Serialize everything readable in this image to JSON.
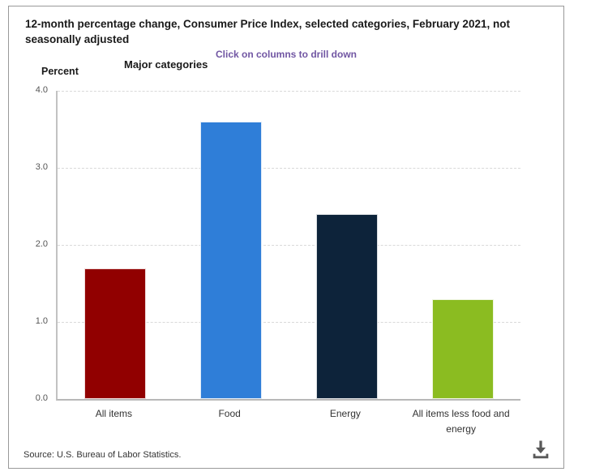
{
  "panel": {
    "title": "12-month percentage change, Consumer Price Index, selected categories, February 2021, not seasonally adjusted",
    "subtitle": "Click on columns to drill down"
  },
  "axes": {
    "y_title": "Percent",
    "x_title": "Major categories"
  },
  "chart_data": {
    "type": "bar",
    "title": "12-month percentage change, Consumer Price Index, selected categories, February 2021, not seasonally adjusted",
    "subtitle": "Click on columns to drill down",
    "categories": [
      "All items",
      "Food",
      "Energy",
      "All items less food and energy"
    ],
    "values": [
      1.7,
      3.6,
      2.4,
      1.3
    ],
    "bar_colors": [
      "#910000",
      "#2f7ed8",
      "#0d233a",
      "#8bbc21"
    ],
    "xlabel": "Major categories",
    "ylabel": "Percent",
    "ylim": [
      0,
      4.0
    ],
    "ytick_labels": [
      "0.0",
      "1.0",
      "2.0",
      "3.0",
      "4.0"
    ],
    "grid": "horizontal-dashed",
    "legend_position": "none"
  },
  "footer": {
    "source": "Source: U.S. Bureau of Labor Statistics."
  },
  "icons": {
    "download": "download-icon"
  },
  "colors": {
    "subtitle_text": "#7156a3",
    "title_text": "#1a1a1a",
    "panel_border": "#999999",
    "axis_line": "#b8b8b8",
    "gridline": "#d9d9d9",
    "tick_text": "#555555",
    "category_text": "#333333",
    "icon": "#595959"
  }
}
